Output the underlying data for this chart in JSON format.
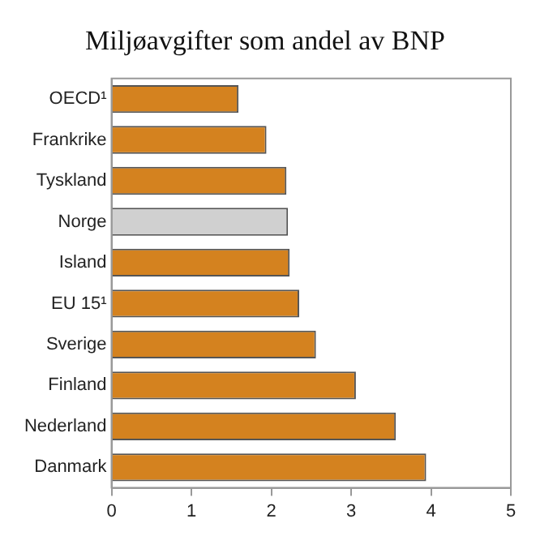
{
  "chart_data": {
    "type": "bar",
    "orientation": "horizontal",
    "title": "Miljøavgifter som andel av BNP",
    "categories": [
      "OECD¹",
      "Frankrike",
      "Tyskland",
      "Norge",
      "Island",
      "EU 15¹",
      "Sverige",
      "Finland",
      "Nederland",
      "Danmark"
    ],
    "values": [
      1.59,
      1.94,
      2.19,
      2.21,
      2.23,
      2.35,
      2.56,
      3.06,
      3.56,
      3.94
    ],
    "colors": [
      "#d4821f",
      "#d4821f",
      "#d4821f",
      "#d0d0d0",
      "#d4821f",
      "#d4821f",
      "#d4821f",
      "#d4821f",
      "#d4821f",
      "#d4821f"
    ],
    "xlim": [
      0,
      5
    ],
    "xticks": [
      0,
      1,
      2,
      3,
      4,
      5
    ],
    "grid": false,
    "legend": false
  }
}
